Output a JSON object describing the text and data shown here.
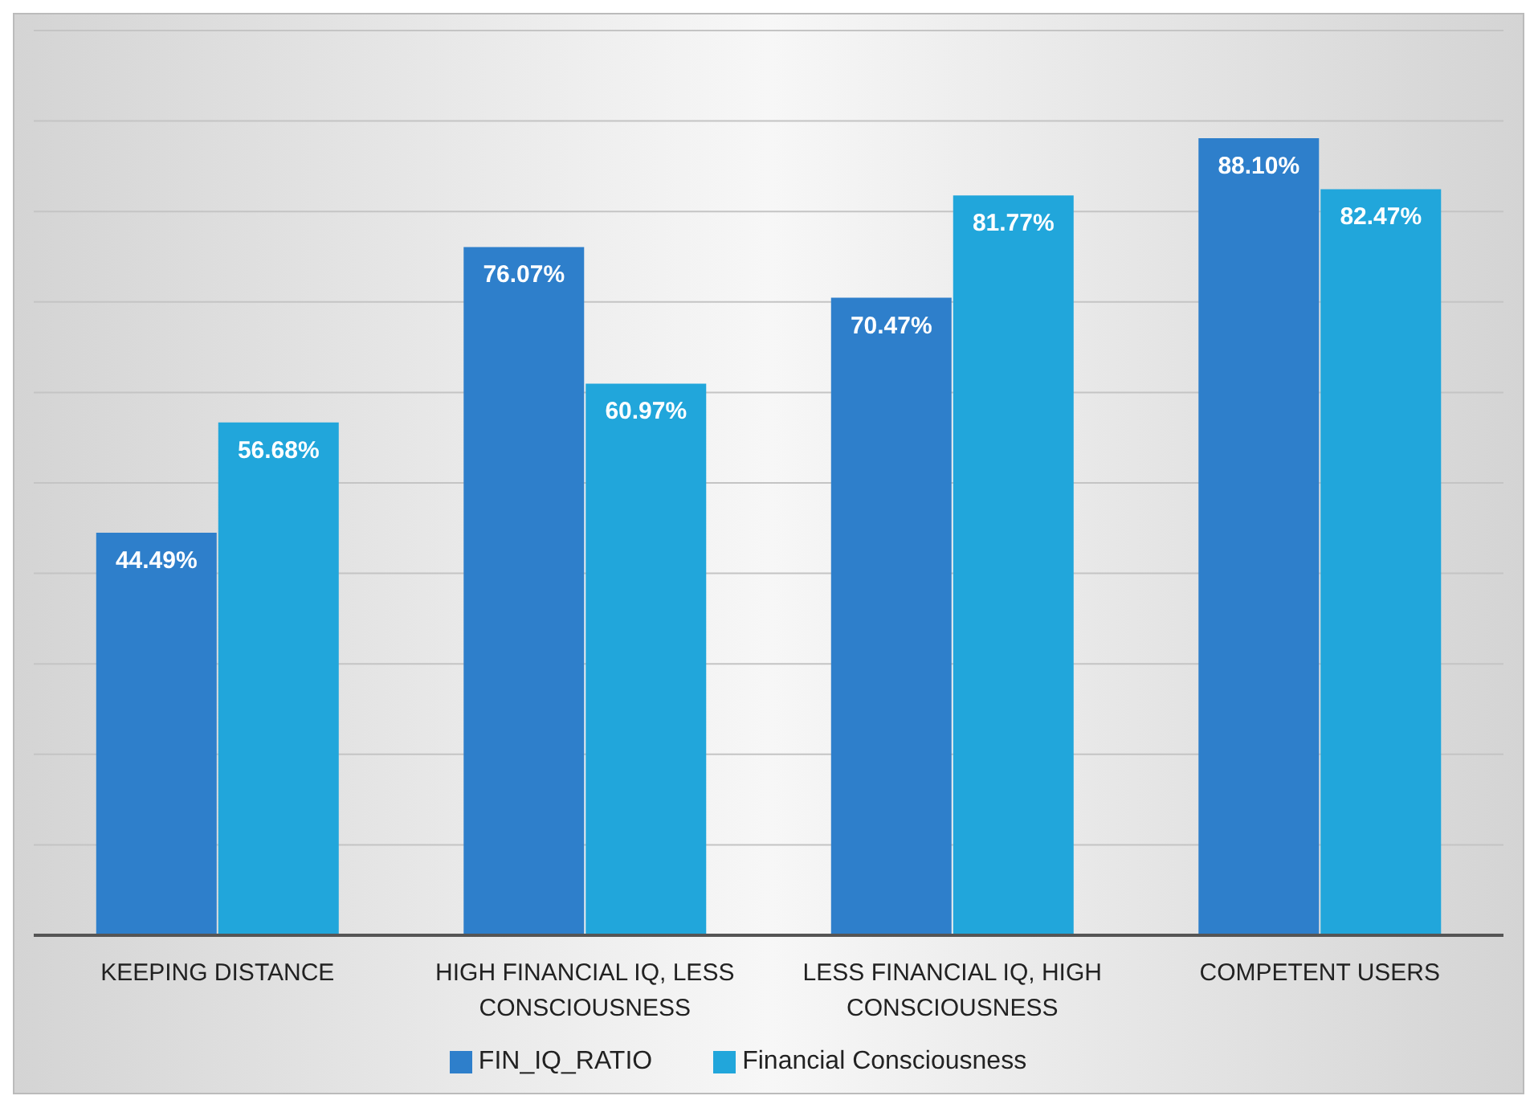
{
  "chart_data": {
    "type": "bar",
    "categories": [
      "KEEPING DISTANCE",
      "HIGH FINANCIAL IQ, LESS CONSCIOUSNESS",
      "LESS FINANCIAL IQ, HIGH CONSCIOUSNESS",
      "COMPETENT USERS"
    ],
    "series": [
      {
        "name": "FIN_IQ_RATIO",
        "color": "#2e7fcb",
        "values": [
          44.49,
          76.07,
          70.47,
          88.1
        ],
        "value_labels": [
          "44.49%",
          "76.07%",
          "70.47%",
          "88.10%"
        ]
      },
      {
        "name": "Financial Consciousness",
        "color": "#21a6db",
        "values": [
          56.68,
          60.97,
          81.77,
          82.47
        ],
        "value_labels": [
          "56.68%",
          "60.97%",
          "81.77%",
          "82.47%"
        ]
      }
    ],
    "ylim": [
      0,
      100
    ],
    "yticks": [
      {
        "value": 0,
        "label": null
      },
      {
        "value": 10,
        "label": null
      },
      {
        "value": 20,
        "label": null
      },
      {
        "value": 30,
        "label": null
      },
      {
        "value": 40,
        "label": null
      },
      {
        "value": 50,
        "label": null
      },
      {
        "value": 60,
        "label": null
      },
      {
        "value": 70,
        "label": null
      },
      {
        "value": 80,
        "label": null
      },
      {
        "value": 90,
        "label": null
      },
      {
        "value": 100,
        "label": null
      }
    ],
    "grid": "y",
    "legend": "bottom",
    "tick_labels": "x"
  }
}
